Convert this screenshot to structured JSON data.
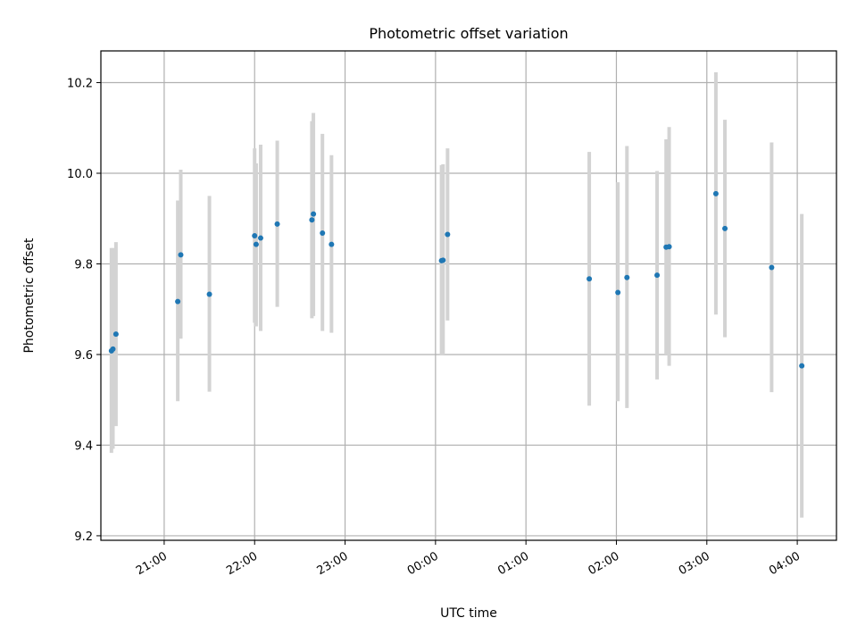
{
  "chart_data": {
    "type": "scatter",
    "title": "Photometric offset variation",
    "xlabel": "UTC time",
    "ylabel": "Photometric offset",
    "x_tick_labels": [
      "21:00",
      "22:00",
      "23:00",
      "00:00",
      "01:00",
      "02:00",
      "03:00",
      "04:00"
    ],
    "x_range": [
      "20:18",
      "04:26"
    ],
    "ylim": [
      9.19,
      10.27
    ],
    "y_ticks": [
      9.2,
      9.4,
      9.6,
      9.8,
      10.0,
      10.2
    ],
    "y_tick_labels": [
      "9.2",
      "9.4",
      "9.6",
      "9.8",
      "10.0",
      "10.2"
    ],
    "grid": true,
    "colors": {
      "marker": "#1f77b4",
      "errorbar": "#d3d3d3"
    },
    "series": [
      {
        "points": [
          {
            "x": "20:25",
            "y": 9.608,
            "lo": 9.383,
            "hi": 9.835
          },
          {
            "x": "20:26",
            "y": 9.612,
            "lo": 9.392,
            "hi": 9.835
          },
          {
            "x": "20:28",
            "y": 9.645,
            "lo": 9.442,
            "hi": 9.848
          },
          {
            "x": "21:09",
            "y": 9.717,
            "lo": 9.497,
            "hi": 9.94
          },
          {
            "x": "21:11",
            "y": 9.82,
            "lo": 9.635,
            "hi": 10.008
          },
          {
            "x": "21:30",
            "y": 9.733,
            "lo": 9.518,
            "hi": 9.95
          },
          {
            "x": "22:00",
            "y": 9.862,
            "lo": 9.67,
            "hi": 10.055
          },
          {
            "x": "22:01",
            "y": 9.843,
            "lo": 9.662,
            "hi": 10.022
          },
          {
            "x": "22:04",
            "y": 9.857,
            "lo": 9.652,
            "hi": 10.063
          },
          {
            "x": "22:15",
            "y": 9.888,
            "lo": 9.705,
            "hi": 10.072
          },
          {
            "x": "22:38",
            "y": 9.897,
            "lo": 9.68,
            "hi": 10.115
          },
          {
            "x": "22:39",
            "y": 9.91,
            "lo": 9.685,
            "hi": 10.133
          },
          {
            "x": "22:45",
            "y": 9.868,
            "lo": 9.652,
            "hi": 10.087
          },
          {
            "x": "22:51",
            "y": 9.843,
            "lo": 9.648,
            "hi": 10.04
          },
          {
            "x": "00:04",
            "y": 9.807,
            "lo": 9.598,
            "hi": 10.018
          },
          {
            "x": "00:05",
            "y": 9.808,
            "lo": 9.6,
            "hi": 10.02
          },
          {
            "x": "00:08",
            "y": 9.865,
            "lo": 9.675,
            "hi": 10.055
          },
          {
            "x": "01:42",
            "y": 9.767,
            "lo": 9.487,
            "hi": 10.047
          },
          {
            "x": "02:01",
            "y": 9.737,
            "lo": 9.497,
            "hi": 9.98
          },
          {
            "x": "02:07",
            "y": 9.77,
            "lo": 9.482,
            "hi": 10.06
          },
          {
            "x": "02:27",
            "y": 9.775,
            "lo": 9.545,
            "hi": 10.005
          },
          {
            "x": "02:33",
            "y": 9.837,
            "lo": 9.6,
            "hi": 10.075
          },
          {
            "x": "02:35",
            "y": 9.838,
            "lo": 9.575,
            "hi": 10.102
          },
          {
            "x": "03:06",
            "y": 9.955,
            "lo": 9.688,
            "hi": 10.223
          },
          {
            "x": "03:12",
            "y": 9.878,
            "lo": 9.638,
            "hi": 10.118
          },
          {
            "x": "03:43",
            "y": 9.792,
            "lo": 9.517,
            "hi": 10.068
          },
          {
            "x": "04:03",
            "y": 9.575,
            "lo": 9.24,
            "hi": 9.91
          }
        ]
      }
    ]
  }
}
